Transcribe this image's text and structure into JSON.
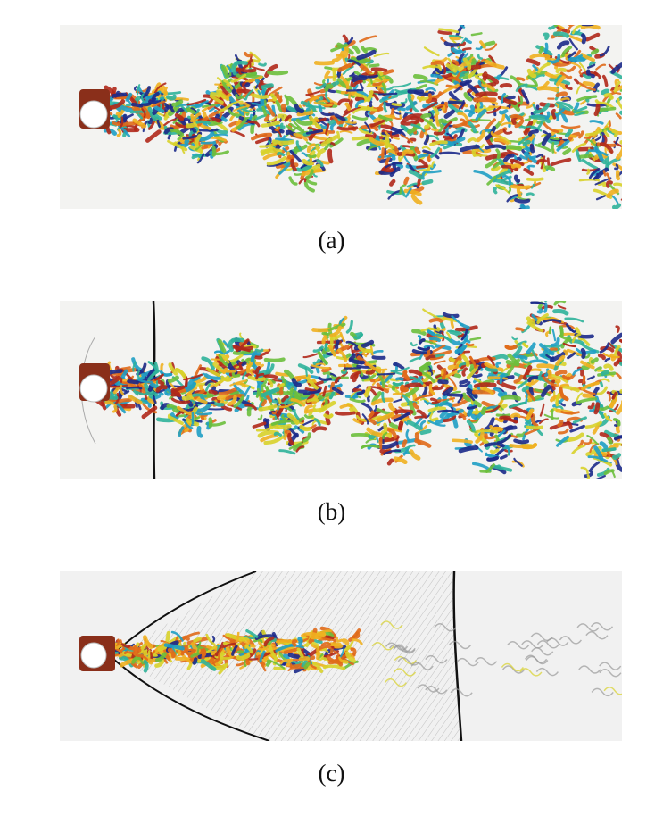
{
  "figure": {
    "panels": [
      {
        "id": "a",
        "caption": "(a)"
      },
      {
        "id": "b",
        "caption": "(b)"
      },
      {
        "id": "c",
        "caption": "(c)"
      }
    ]
  },
  "colors": {
    "background": "#f3f3f1",
    "vortex_palette": [
      "#1c2a8a",
      "#1f9fc4",
      "#2fb39a",
      "#6cbf3c",
      "#d8d22a",
      "#f0b020",
      "#e06a1a",
      "#b0281a"
    ],
    "shock": "#111111",
    "cylinder": "#ffffff"
  }
}
